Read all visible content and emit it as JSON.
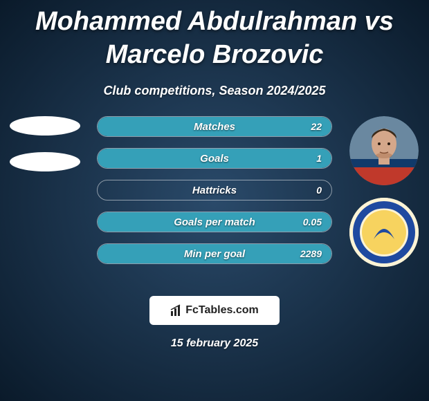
{
  "title": "Mohammed Abdulrahman vs Marcelo Brozovic",
  "subtitle": "Club competitions, Season 2024/2025",
  "date": "15 february 2025",
  "logo_text": "FcTables.com",
  "background": {
    "gradient_center": "#2a4a6a",
    "gradient_edge": "#0a1a2a"
  },
  "stats": [
    {
      "label": "Matches",
      "right_value": "22",
      "right_fill_pct": 100,
      "right_fill_color": "#35a0b8"
    },
    {
      "label": "Goals",
      "right_value": "1",
      "right_fill_pct": 100,
      "right_fill_color": "#35a0b8"
    },
    {
      "label": "Hattricks",
      "right_value": "0",
      "right_fill_pct": 0,
      "right_fill_color": "#35a0b8"
    },
    {
      "label": "Goals per match",
      "right_value": "0.05",
      "right_fill_pct": 100,
      "right_fill_color": "#35a0b8"
    },
    {
      "label": "Min per goal",
      "right_value": "2289",
      "right_fill_pct": 100,
      "right_fill_color": "#35a0b8"
    }
  ],
  "left": {
    "placeholders": 2
  },
  "right": {
    "player": {
      "skin": "#d4a78a",
      "hair": "#3a2a1a",
      "shirt_top": "#113a6a",
      "shirt_bottom": "#c0392b"
    },
    "club": {
      "bg": "#fef4d6",
      "ring": "#1f4aa0",
      "inner": "#f7d35f",
      "accent": "#1f4aa0"
    }
  },
  "style": {
    "row_border": "rgba(255,255,255,0.5)",
    "text_color": "#ffffff",
    "title_fontsize": 38,
    "subtitle_fontsize": 18,
    "stat_label_fontsize": 15,
    "stat_value_fontsize": 14
  }
}
